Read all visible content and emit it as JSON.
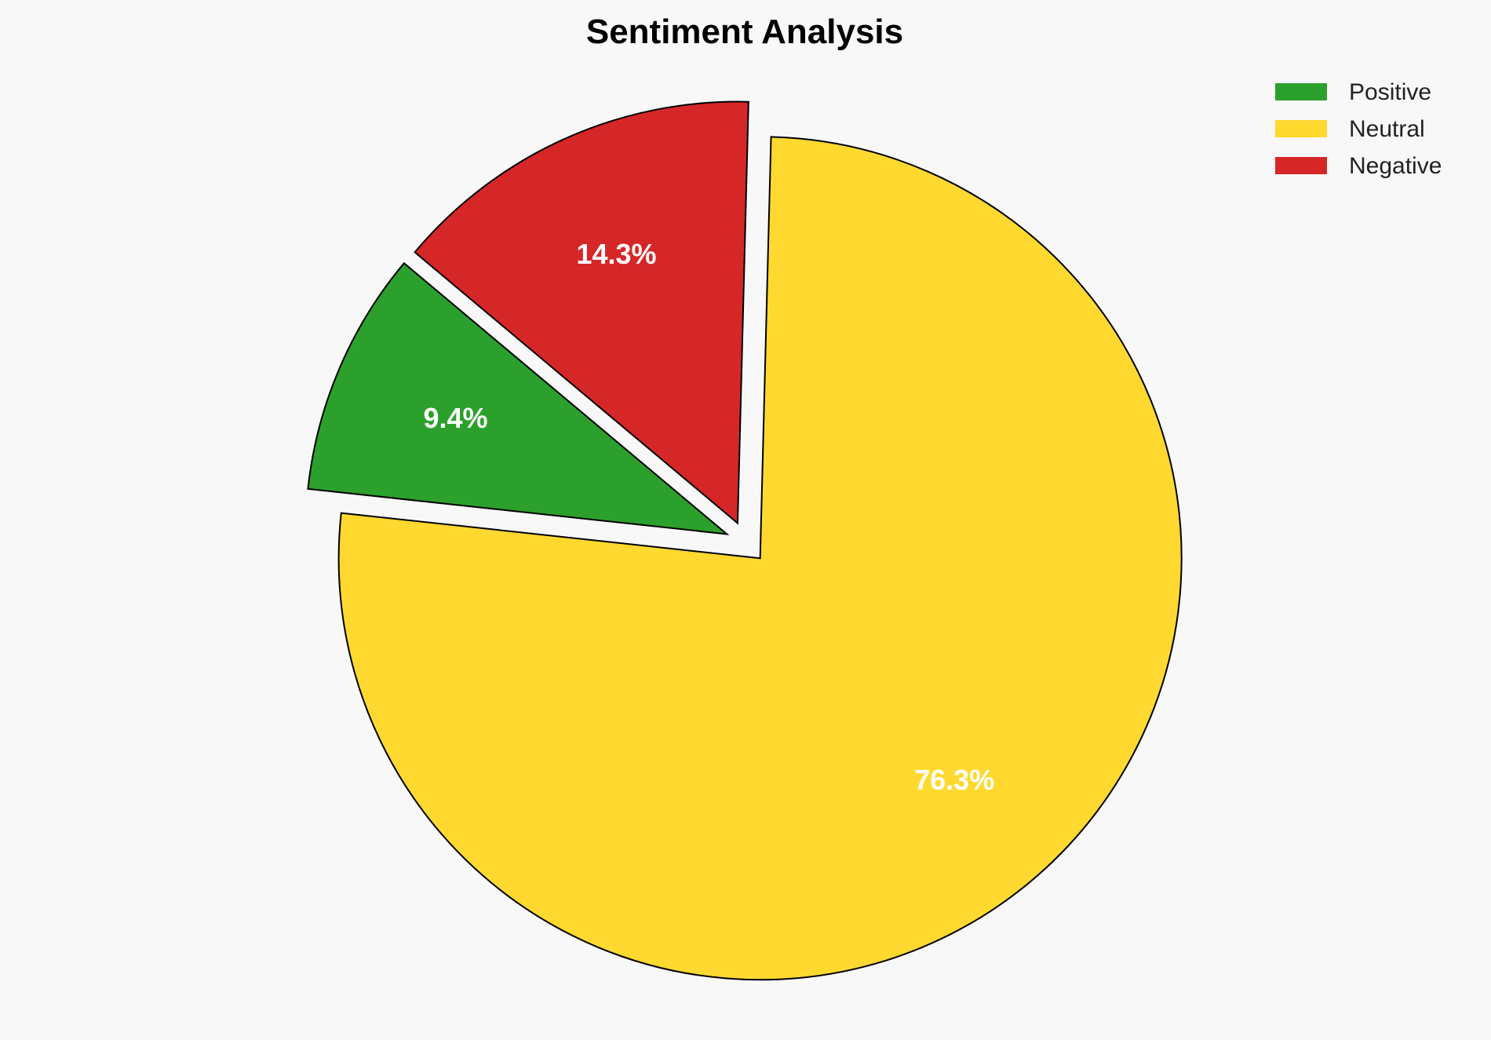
{
  "chart_data": {
    "type": "pie",
    "title": "Sentiment Analysis",
    "categories": [
      "Positive",
      "Neutral",
      "Negative"
    ],
    "values": [
      9.4,
      76.3,
      14.3
    ],
    "labels": [
      "9.4%",
      "76.3%",
      "14.3%"
    ],
    "colors": [
      "#2ca02c",
      "#ffd92f",
      "#d62728"
    ],
    "start_angle_deg": 140,
    "explode": [
      0.05,
      0.05,
      0.05
    ],
    "legend_placement": "top-right",
    "background": "#f8f8f8"
  }
}
